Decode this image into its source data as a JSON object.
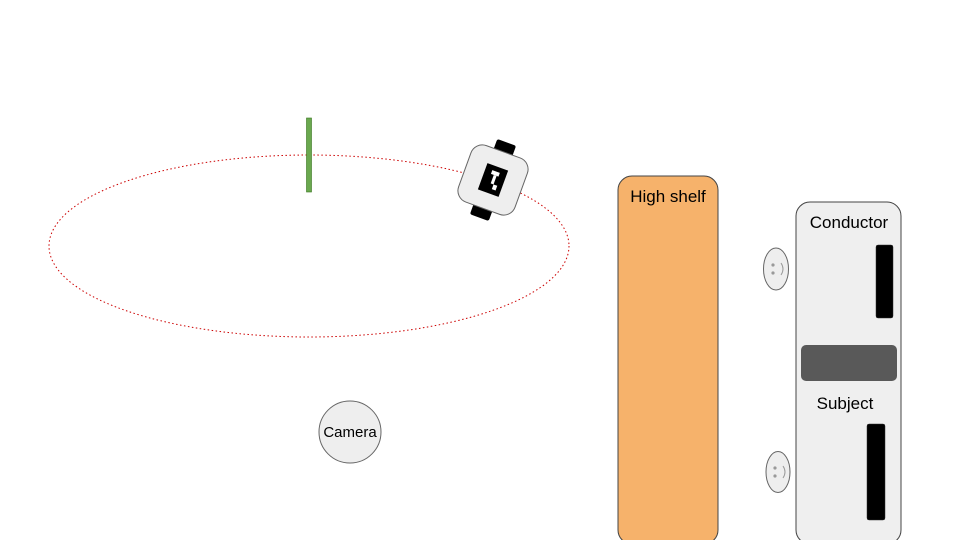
{
  "labels": {
    "camera": "Camera",
    "shelf": "High shelf",
    "conductor": "Conductor",
    "subject": "Subject"
  },
  "colors": {
    "path": "#cc0000",
    "post": "#6aa84f",
    "shelf": "#f6b26b",
    "booth": "#efefef",
    "divider": "#595959",
    "robot_body": "#eeeeee",
    "robot_wheels": "#000000"
  },
  "icons": {
    "robot": "robot-icon",
    "face": "face-icon",
    "camera": "camera-icon"
  }
}
